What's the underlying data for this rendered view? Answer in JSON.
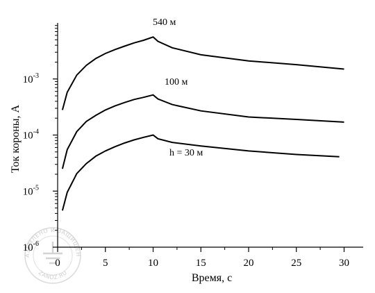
{
  "chart_data": {
    "type": "line",
    "xlabel": "Время,  с",
    "ylabel": "Ток короны,  А",
    "xlim": [
      0,
      32
    ],
    "ylim": [
      1e-06,
      0.01
    ],
    "y_scale": "log",
    "x_ticks": [
      "0",
      "5",
      "10",
      "15",
      "20",
      "25",
      "30"
    ],
    "y_tick_labels": [
      {
        "base": "10",
        "exp": "-6",
        "value": 1e-06
      },
      {
        "base": "10",
        "exp": "-5",
        "value": 1e-05
      },
      {
        "base": "10",
        "exp": "-4",
        "value": 0.0001
      },
      {
        "base": "10",
        "exp": "-3",
        "value": 0.001
      }
    ],
    "grid": false,
    "series": [
      {
        "name": "540 м",
        "x": [
          0.5,
          1,
          2,
          3,
          4,
          5,
          6,
          7,
          8,
          9,
          10,
          10.5,
          12,
          15,
          20,
          25,
          30
        ],
        "y": [
          0.00028,
          0.00058,
          0.00117,
          0.00175,
          0.00232,
          0.00285,
          0.00335,
          0.00385,
          0.0044,
          0.0049,
          0.0056,
          0.0047,
          0.0036,
          0.0027,
          0.0021,
          0.0018,
          0.0015
        ]
      },
      {
        "name": "100 м",
        "x": [
          0.5,
          1,
          2,
          3,
          4,
          5,
          6,
          7,
          8,
          9,
          10,
          10.5,
          12,
          15,
          20,
          25,
          30
        ],
        "y": [
          2.5e-05,
          5.5e-05,
          0.000115,
          0.000175,
          0.000225,
          0.00028,
          0.00033,
          0.00038,
          0.00043,
          0.00047,
          0.00052,
          0.00044,
          0.00035,
          0.00027,
          0.00021,
          0.00019,
          0.00017
        ]
      },
      {
        "name": "h = 30 м",
        "x": [
          0.5,
          1,
          2,
          3,
          4,
          5,
          6,
          7,
          8,
          9,
          10,
          10.5,
          12,
          15,
          20,
          25,
          29.5
        ],
        "y": [
          4.5e-06,
          9.5e-06,
          2.05e-05,
          3.1e-05,
          4.2e-05,
          5.2e-05,
          6.2e-05,
          7.2e-05,
          8.2e-05,
          9.1e-05,
          0.0001,
          8.6e-05,
          7.4e-05,
          6.4e-05,
          5.2e-05,
          4.5e-05,
          4.1e-05
        ]
      }
    ]
  },
  "watermark": {
    "top_text": "ЗАЗЕМЛЕНО И ЗАЩИЩЕНО",
    "bottom_text": "ZANDZ.RU",
    "icon": "ground-symbol-icon"
  }
}
